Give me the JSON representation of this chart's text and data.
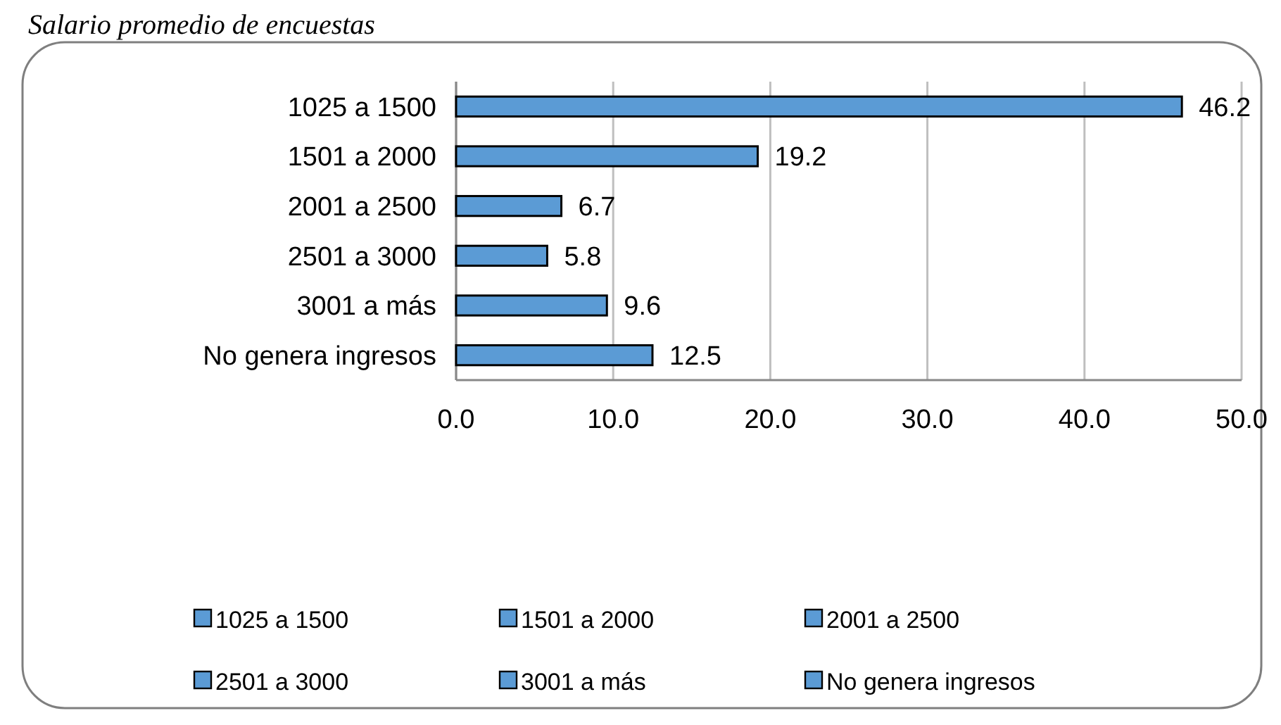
{
  "chart_data": {
    "type": "bar",
    "orientation": "horizontal",
    "stacked": true,
    "title": "Salario promedio de encuestas",
    "categories": [
      "1025 a 1500",
      "1501 a 2000",
      "2001 a 2500",
      "2501 a 3000",
      "3001 a más",
      "No genera ingresos"
    ],
    "series": [
      {
        "name": "1025 a 1500",
        "color": "#5b9bd5",
        "values": [
          46.2,
          null,
          null,
          null,
          null,
          null
        ]
      },
      {
        "name": "1501 a 2000",
        "color": "#5b9bd5",
        "values": [
          null,
          19.2,
          null,
          null,
          null,
          null
        ]
      },
      {
        "name": "2001 a 2500",
        "color": "#5b9bd5",
        "values": [
          null,
          null,
          6.7,
          null,
          null,
          null
        ]
      },
      {
        "name": "2501 a 3000",
        "color": "#5b9bd5",
        "values": [
          null,
          null,
          null,
          5.8,
          null,
          null
        ]
      },
      {
        "name": "3001 a más",
        "color": "#5b9bd5",
        "values": [
          null,
          null,
          null,
          null,
          9.6,
          null
        ]
      },
      {
        "name": "No genera ingresos",
        "color": "#5b9bd5",
        "values": [
          null,
          null,
          null,
          null,
          null,
          12.5
        ]
      }
    ],
    "xlim": [
      0,
      50
    ],
    "xticks": [
      {
        "value": 0,
        "label": "0.0"
      },
      {
        "value": 10,
        "label": "10.0"
      },
      {
        "value": 20,
        "label": "20.0"
      },
      {
        "value": 30,
        "label": "30.0"
      },
      {
        "value": 40,
        "label": "40.0"
      },
      {
        "value": 50,
        "label": "50.0"
      }
    ],
    "grid": "x",
    "data_labels": true,
    "legend": "bottom"
  }
}
